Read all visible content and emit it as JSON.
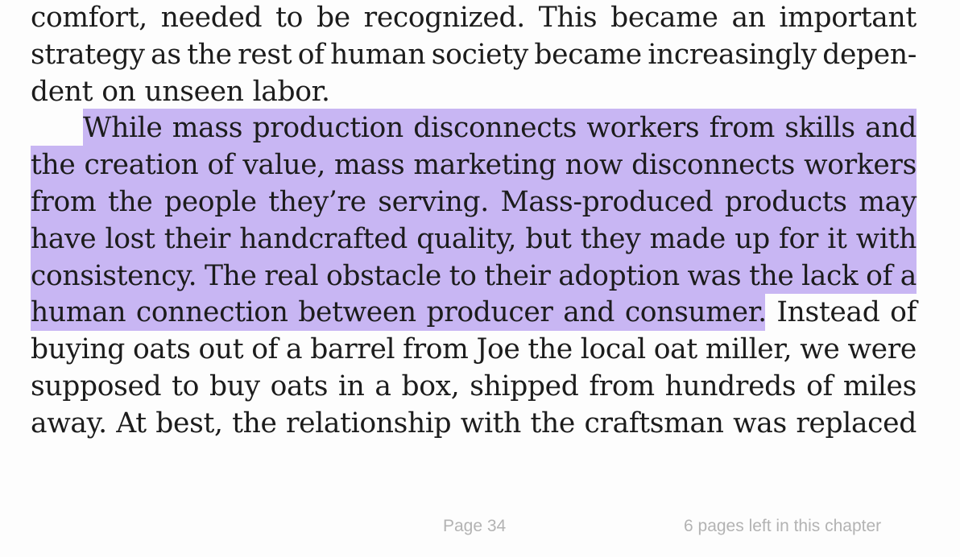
{
  "lines": [
    "comfort, needed to be recognized. This became an important",
    "strategy as the rest of human society became increasingly depen-",
    "dent on unseen labor.",
    "While mass production disconnects workers from skills and",
    "the creation of value, mass marketing now disconnects workers",
    "from the people they’re serving. Mass-produced products may",
    "have lost their handcrafted quality, but they made up for it with",
    "consistency. The real obstacle to their adoption was the lack of a",
    "human connection between producer and consumer. Instead of",
    "buying oats out of a barrel from Joe the local oat miller, we were",
    "supposed to buy oats in a box, shipped from hundreds of miles",
    "away. At best, the relationship with the craftsman was replaced"
  ],
  "highlight_text": "While mass production disconnects workers from skills and the creation of value, mass marketing now disconnects workers from the people they’re serving. Mass-produced products may have lost their handcrafted quality, but they made up for it with consistency. The real obstacle to their adoption was the lack of a human connection between producer and consumer.",
  "colors": {
    "highlight": "#c8b6f3",
    "text": "#1c1c1c",
    "footer": "#b3b3b3"
  },
  "footer": {
    "page": "Page 34",
    "chapter_remaining": "6 pages left in this chapter"
  }
}
